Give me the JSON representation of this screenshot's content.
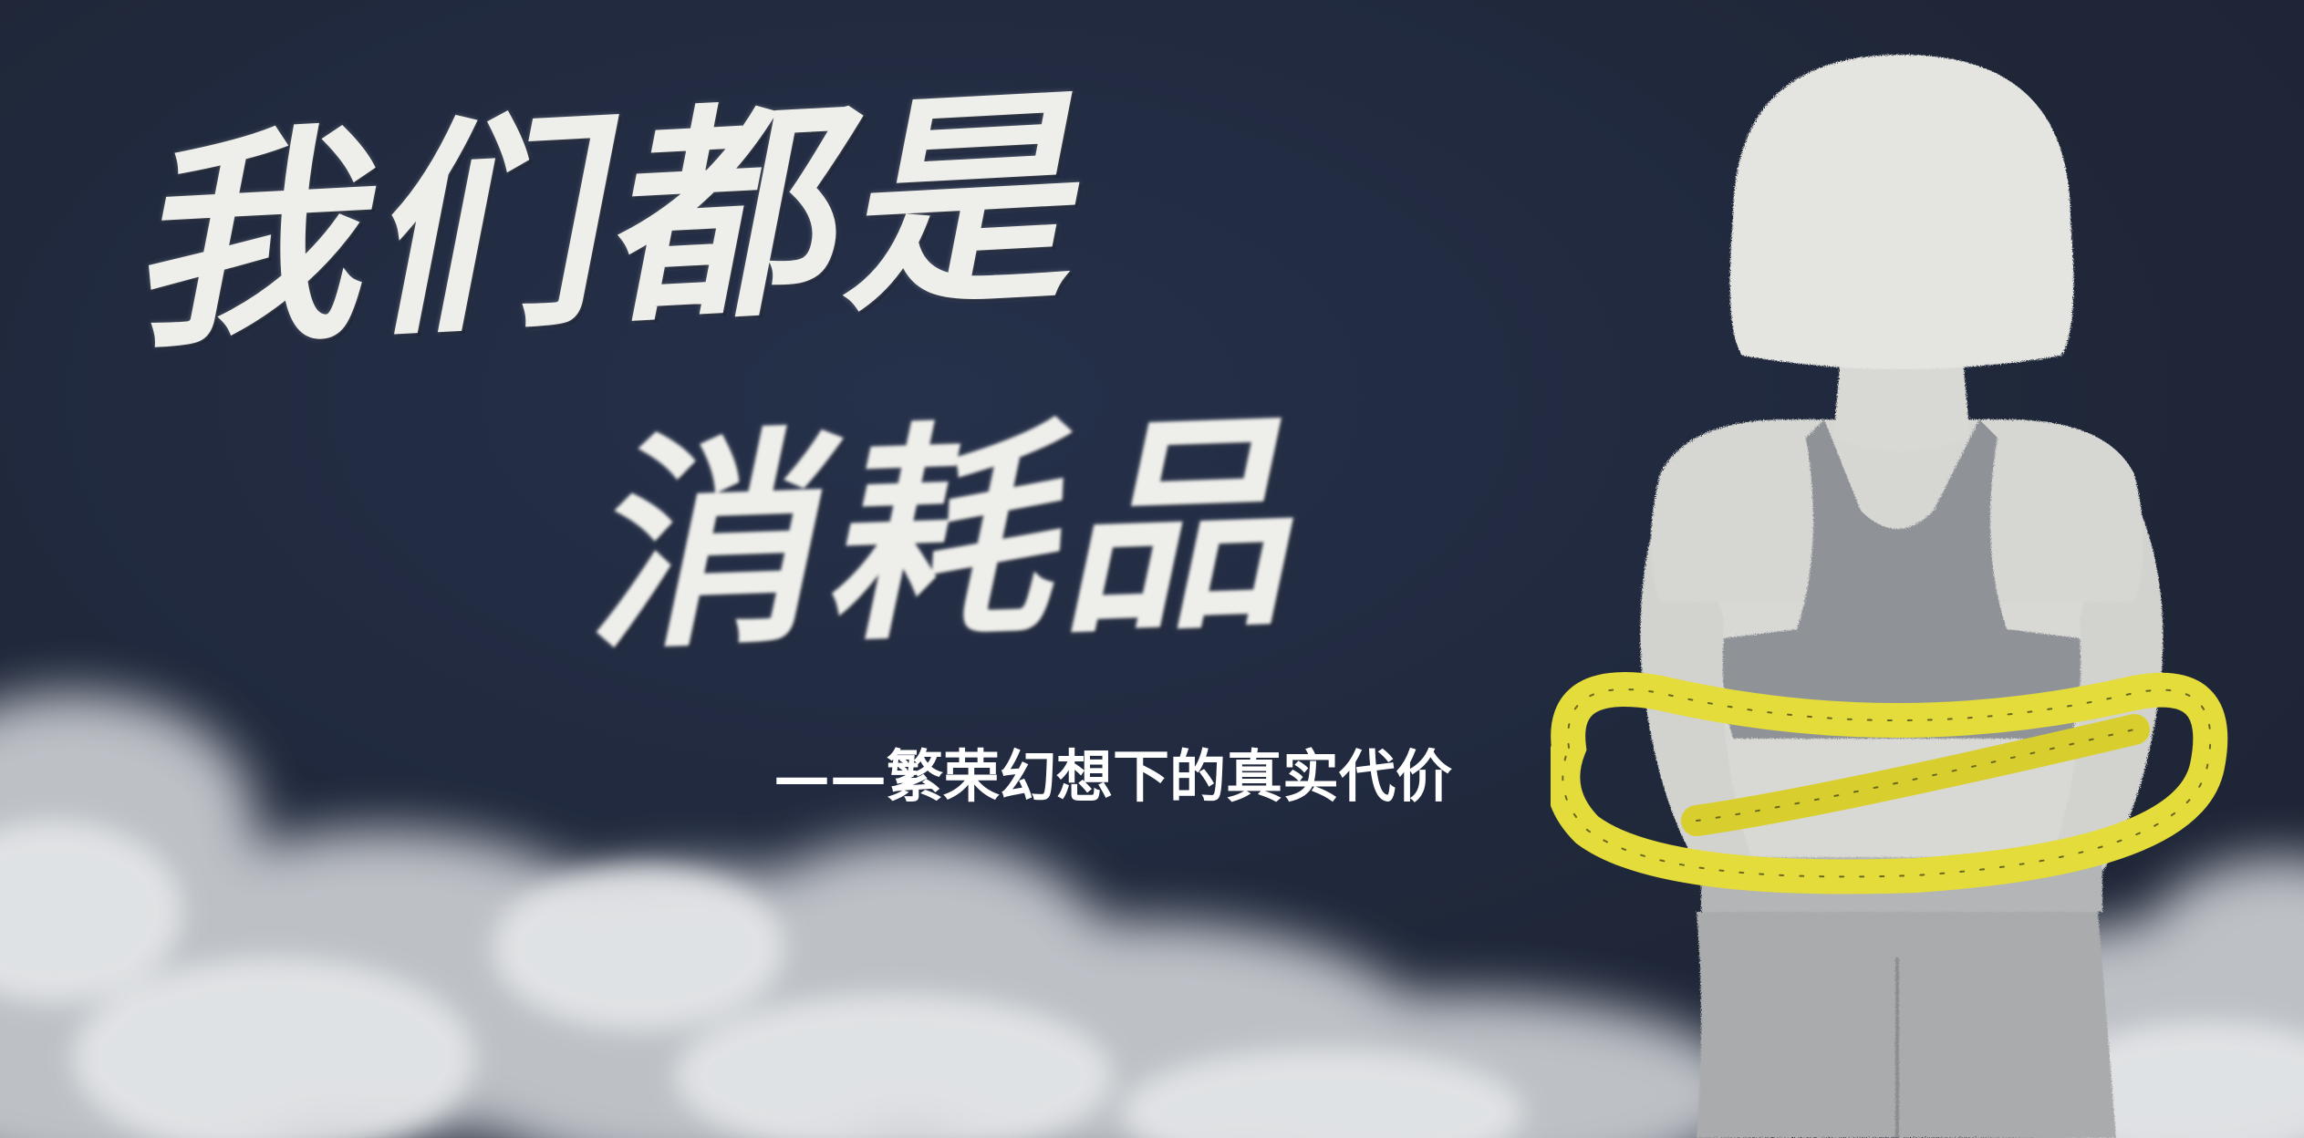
{
  "banner": {
    "title_line_1": "我们都是",
    "title_line_2": "消耗品",
    "subtitle": "——繁荣幻想下的真实代价"
  },
  "illustration": {
    "figure_icon": "woman-with-measuring-tape-illustration",
    "cloud_icon": "smoke-cloud-decoration"
  },
  "colors": {
    "background": "#1f2739",
    "title_text": "#eeeeea",
    "subtitle_text": "#ffffff",
    "tape_yellow": "#e4dc3a",
    "figure_skin": "#d9d9d6",
    "top_gray": "#8f9398"
  }
}
